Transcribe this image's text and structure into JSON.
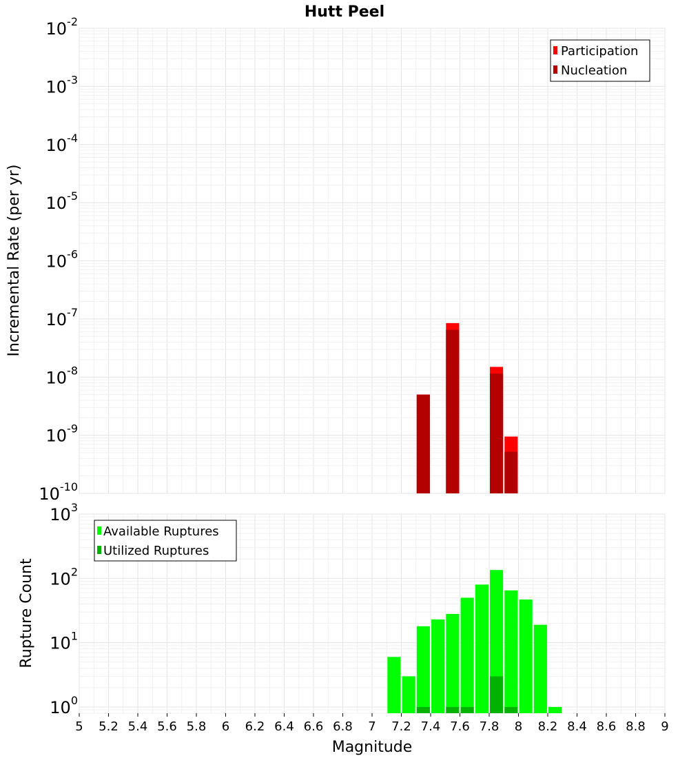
{
  "chart_data": [
    {
      "type": "bar",
      "title": "Hutt Peel",
      "xlabel": "",
      "ylabel": "Incremental Rate (per yr)",
      "xlim": [
        5,
        9
      ],
      "ylim": [
        1e-10,
        0.01
      ],
      "yscale": "log",
      "grid": true,
      "legend_position": "top-right",
      "x_ticks": [
        "5",
        "5.2",
        "5.4",
        "5.6",
        "5.8",
        "6",
        "6.2",
        "6.4",
        "6.6",
        "6.8",
        "7",
        "7.2",
        "7.4",
        "7.6",
        "7.8",
        "8",
        "8.2",
        "8.4",
        "8.6",
        "8.8",
        "9"
      ],
      "y_ticks": [
        {
          "base": "10",
          "exp": "-10",
          "value": 1e-10
        },
        {
          "base": "10",
          "exp": "-9",
          "value": 1e-09
        },
        {
          "base": "10",
          "exp": "-8",
          "value": 1e-08
        },
        {
          "base": "10",
          "exp": "-7",
          "value": 1e-07
        },
        {
          "base": "10",
          "exp": "-6",
          "value": 1e-06
        },
        {
          "base": "10",
          "exp": "-5",
          "value": 1e-05
        },
        {
          "base": "10",
          "exp": "-4",
          "value": 0.0001
        },
        {
          "base": "10",
          "exp": "-3",
          "value": 0.001
        },
        {
          "base": "10",
          "exp": "-2",
          "value": 0.01
        }
      ],
      "series": [
        {
          "name": "Participation",
          "color": "#ff0000",
          "x": [
            7.35,
            7.55,
            7.85,
            7.95
          ],
          "values": [
            5e-09,
            8.5e-08,
            1.5e-08,
            9.5e-10
          ]
        },
        {
          "name": "Nucleation",
          "color": "#b30000",
          "x": [
            7.35,
            7.55,
            7.85,
            7.95
          ],
          "values": [
            5e-09,
            6.5e-08,
            1.15e-08,
            5.2e-10
          ]
        }
      ]
    },
    {
      "type": "bar",
      "title": "",
      "xlabel": "Magnitude",
      "ylabel": "Rupture Count",
      "xlim": [
        5,
        9
      ],
      "ylim": [
        0.8,
        1000
      ],
      "yscale": "log",
      "grid": true,
      "legend_position": "top-left",
      "x_ticks": [
        "5",
        "5.2",
        "5.4",
        "5.6",
        "5.8",
        "6",
        "6.2",
        "6.4",
        "6.6",
        "6.8",
        "7",
        "7.2",
        "7.4",
        "7.6",
        "7.8",
        "8",
        "8.2",
        "8.4",
        "8.6",
        "8.8",
        "9"
      ],
      "y_ticks": [
        {
          "base": "10",
          "exp": "0",
          "value": 1
        },
        {
          "base": "10",
          "exp": "1",
          "value": 10
        },
        {
          "base": "10",
          "exp": "2",
          "value": 100
        },
        {
          "base": "10",
          "exp": "3",
          "value": 1000
        }
      ],
      "series": [
        {
          "name": "Available Ruptures",
          "color": "#00ff00",
          "x": [
            7.15,
            7.25,
            7.35,
            7.45,
            7.55,
            7.65,
            7.75,
            7.85,
            7.95,
            8.05,
            8.15,
            8.25
          ],
          "values": [
            6,
            3,
            18,
            23,
            28,
            50,
            80,
            135,
            65,
            47,
            19,
            1
          ]
        },
        {
          "name": "Utilized Ruptures",
          "color": "#00b300",
          "x": [
            7.35,
            7.55,
            7.65,
            7.85,
            7.95
          ],
          "values": [
            1,
            1,
            1,
            3,
            1
          ]
        }
      ]
    }
  ]
}
